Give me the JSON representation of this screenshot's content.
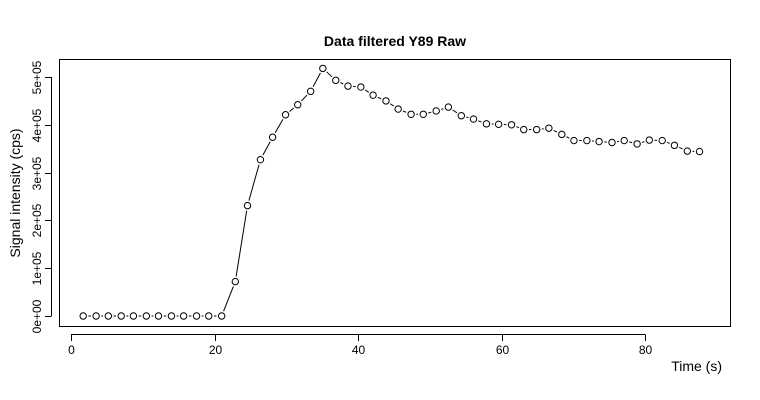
{
  "chart_data": {
    "type": "scatter",
    "title": "Data filtered Y89 Raw",
    "xlabel": "Time (s)",
    "ylabel": "Signal intensity (cps)",
    "xlim": [
      0,
      90
    ],
    "ylim": [
      0,
      530000
    ],
    "x_ticks": [
      0,
      20,
      40,
      60,
      80
    ],
    "x_tick_labels": [
      "0",
      "20",
      "40",
      "60",
      "80"
    ],
    "y_ticks": [
      0,
      100000,
      200000,
      300000,
      400000,
      500000
    ],
    "y_tick_labels": [
      "0e+00",
      "1e+05",
      "2e+05",
      "3e+05",
      "4e+05",
      "5e+05"
    ],
    "grid": false,
    "series": [
      {
        "style": "points-and-lines",
        "x": [
          1.7,
          3.5,
          5.2,
          7.0,
          8.7,
          10.5,
          12.2,
          14.0,
          15.7,
          17.5,
          19.2,
          21.0,
          22.9,
          24.6,
          26.4,
          28.1,
          29.9,
          31.6,
          33.4,
          35.1,
          36.9,
          38.6,
          40.4,
          42.1,
          43.9,
          45.6,
          47.4,
          49.1,
          50.9,
          52.6,
          54.4,
          56.1,
          57.9,
          59.6,
          61.4,
          63.1,
          64.9,
          66.6,
          68.4,
          70.1,
          71.9,
          73.6,
          75.4,
          77.1,
          78.9,
          80.6,
          82.4,
          84.1,
          85.9,
          87.6
        ],
        "y": [
          0,
          0,
          0,
          0,
          0,
          0,
          0,
          0,
          0,
          0,
          0,
          0,
          72000,
          231000,
          327000,
          374000,
          421000,
          442000,
          470000,
          518000,
          493000,
          481000,
          479000,
          462000,
          450000,
          433000,
          422000,
          422000,
          429000,
          437000,
          419000,
          412000,
          402000,
          401000,
          400000,
          390000,
          390000,
          393000,
          380000,
          367000,
          367000,
          365000,
          363000,
          367000,
          360000,
          368000,
          367000,
          357000,
          345000,
          344000
        ]
      }
    ]
  }
}
